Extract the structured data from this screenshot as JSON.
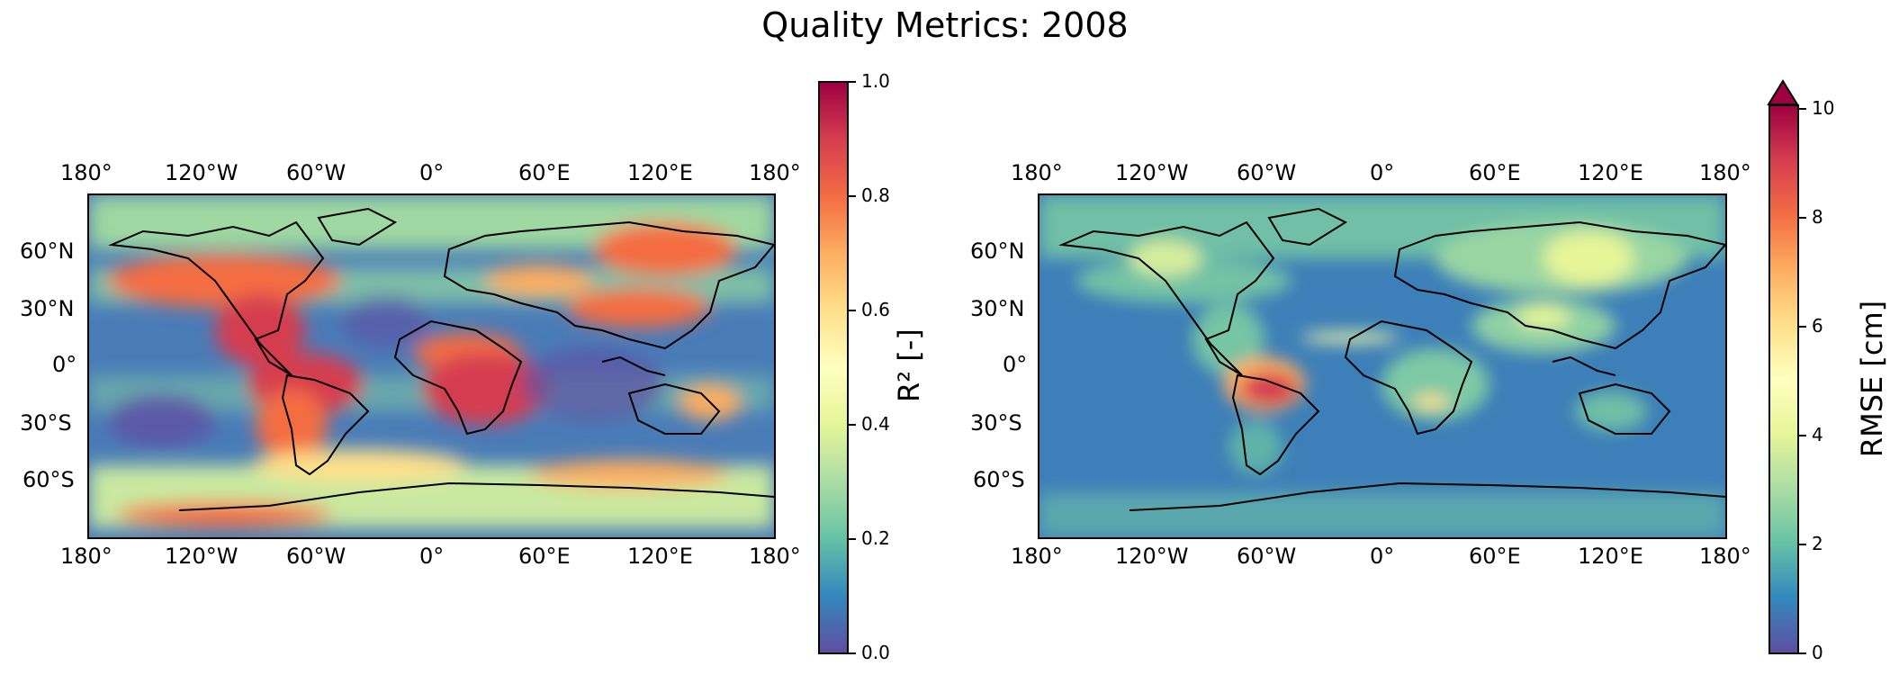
{
  "figure": {
    "title": "Quality Metrics: 2008"
  },
  "lon_ticks": [
    "180°",
    "120°W",
    "60°W",
    "0°",
    "60°E",
    "120°E",
    "180°"
  ],
  "lat_ticks": [
    "60°N",
    "30°N",
    "0°",
    "30°S",
    "60°S"
  ],
  "panels": [
    {
      "id": "r2",
      "colorbar": {
        "label": "R² [-]",
        "colormap": "Spectral_r",
        "range": [
          0.0,
          1.0
        ],
        "ticks": [
          "0.0",
          "0.2",
          "0.4",
          "0.6",
          "0.8",
          "1.0"
        ],
        "extend": "neither"
      }
    },
    {
      "id": "rmse",
      "colorbar": {
        "label": "RMSE [cm]",
        "colormap": "Spectral_r",
        "range": [
          0,
          10
        ],
        "ticks": [
          "0",
          "2",
          "4",
          "6",
          "8",
          "10"
        ],
        "extend": "max"
      }
    }
  ],
  "colors": {
    "spectral_r": [
      "#5e4fa2",
      "#3288bd",
      "#66c2a5",
      "#abdda4",
      "#e6f598",
      "#ffffbf",
      "#fee08b",
      "#fdae61",
      "#f46d43",
      "#d53e4f",
      "#9e0142"
    ]
  }
}
